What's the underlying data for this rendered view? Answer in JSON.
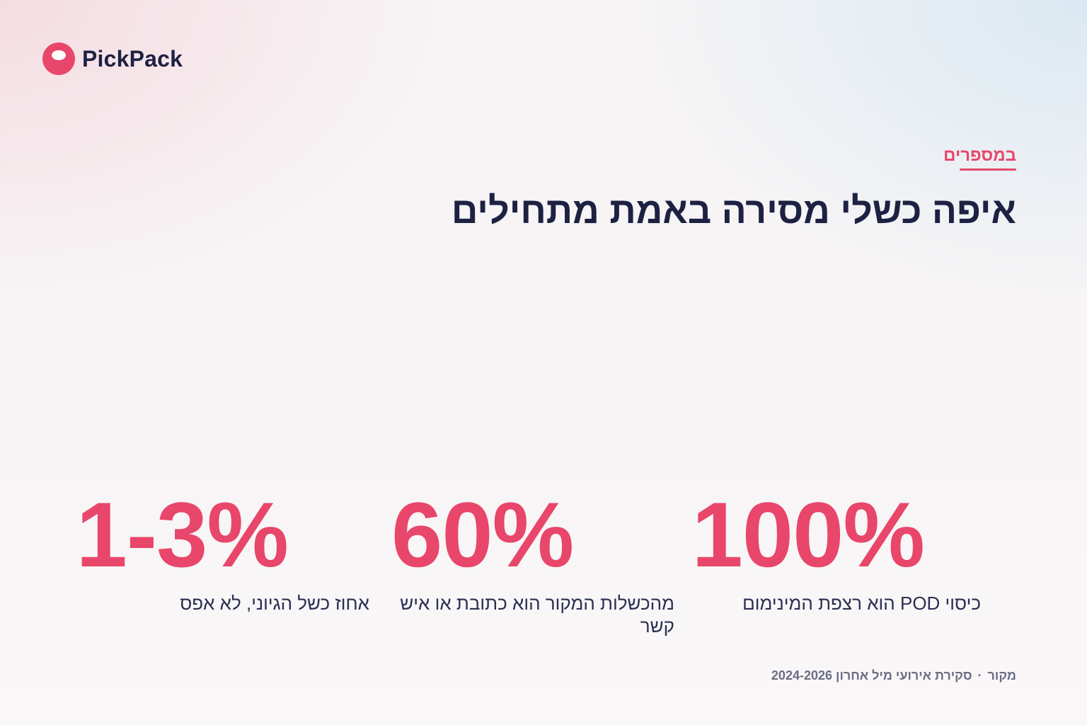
{
  "brand": {
    "name": "PickPack",
    "accent_color": "#e8466a",
    "text_color": "#1d2142",
    "logo_icon": "pickpack-logo-icon"
  },
  "section": {
    "eyebrow": "במספרים",
    "title": "איפה כשלי מסירה באמת מתחילים"
  },
  "stats": [
    {
      "value": "100%",
      "label": "כיסוי POD הוא רצפת המינימום"
    },
    {
      "value": "60%",
      "label": "מהכשלות המקור הוא כתובת או איש קשר"
    },
    {
      "value": "1-3%",
      "label": "אחוז כשל הגיוני, לא אפס"
    }
  ],
  "source": {
    "label": "מקור",
    "separator": "·",
    "text": "סקירת אירועי מיל אחרון 2024-2026"
  }
}
